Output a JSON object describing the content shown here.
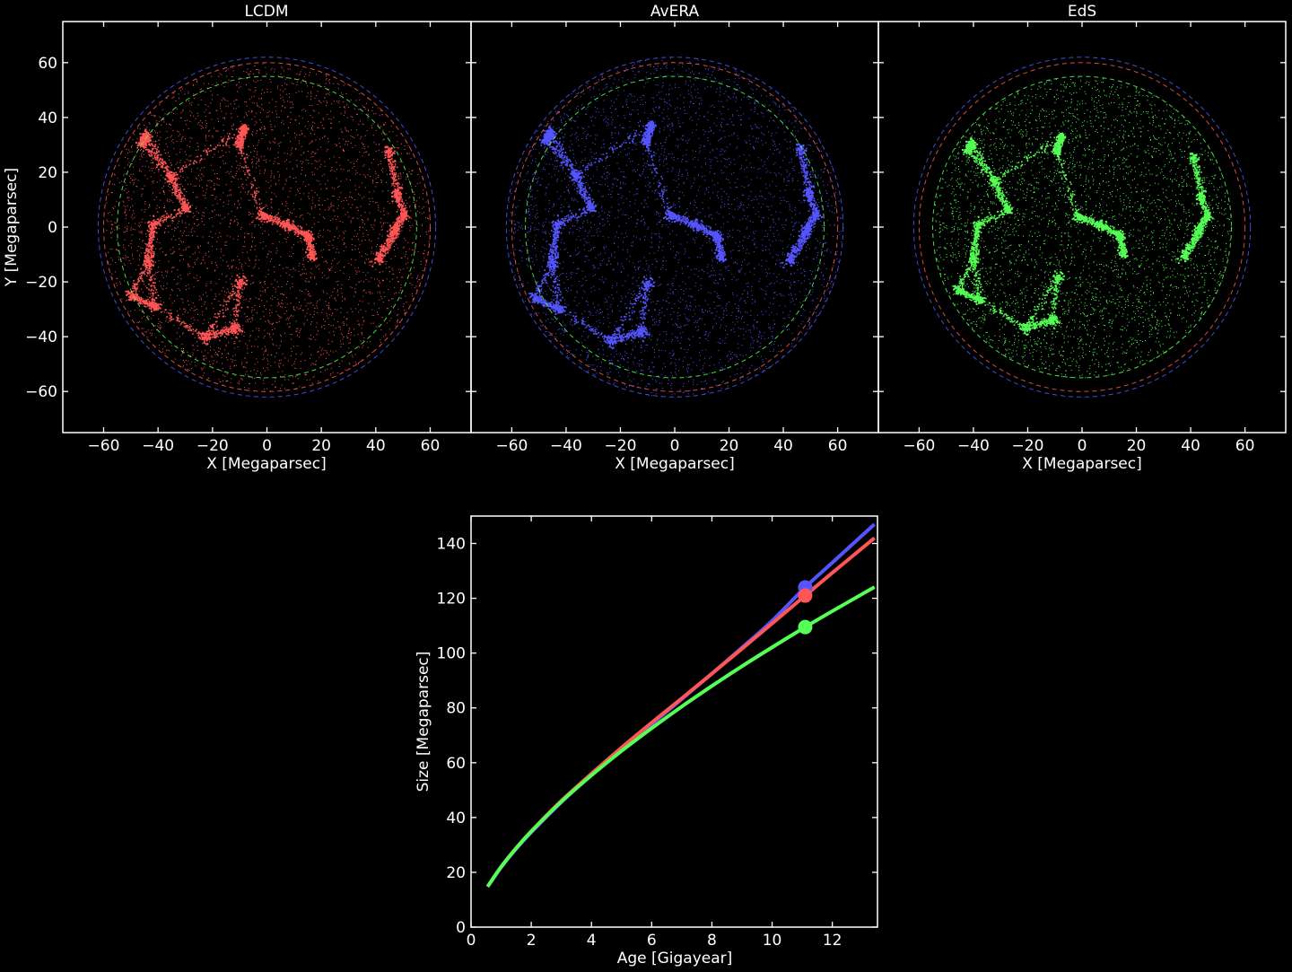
{
  "colors": {
    "lcdm": "#ff5555",
    "avera": "#5555ff",
    "eds": "#55ff55",
    "axes": "#ffffff",
    "background": "#000000"
  },
  "chart_data": [
    {
      "type": "scatter",
      "title": "LCDM",
      "xlabel": "X [Megaparsec]",
      "ylabel": "Y [Megaparsec]",
      "xlim": [
        -75,
        75
      ],
      "ylim": [
        -75,
        75
      ],
      "xticks": [
        "−60",
        "−40",
        "−20",
        "0",
        "20",
        "40",
        "60"
      ],
      "yticks": [
        "60",
        "40",
        "20",
        "0",
        "−20",
        "−40",
        "−60"
      ],
      "point_color": "#ff5555",
      "particle_radius": 60,
      "dashed_circles": [
        {
          "color": "#5555ff",
          "radius": 62
        },
        {
          "color": "#ff5555",
          "radius": 60
        },
        {
          "color": "#55ff55",
          "radius": 55
        }
      ]
    },
    {
      "type": "scatter",
      "title": "AvERA",
      "xlabel": "X [Megaparsec]",
      "xlim": [
        -75,
        75
      ],
      "ylim": [
        -75,
        75
      ],
      "xticks": [
        "−60",
        "−40",
        "−20",
        "0",
        "20",
        "40",
        "60"
      ],
      "point_color": "#5555ff",
      "particle_radius": 62,
      "dashed_circles": [
        {
          "color": "#5555ff",
          "radius": 62
        },
        {
          "color": "#ff5555",
          "radius": 60
        },
        {
          "color": "#55ff55",
          "radius": 55
        }
      ]
    },
    {
      "type": "scatter",
      "title": "EdS",
      "xlabel": "X [Megaparsec]",
      "xlim": [
        -75,
        75
      ],
      "ylim": [
        -75,
        75
      ],
      "xticks": [
        "−60",
        "−40",
        "−20",
        "0",
        "20",
        "40",
        "60"
      ],
      "point_color": "#55ff55",
      "particle_radius": 55,
      "dashed_circles": [
        {
          "color": "#5555ff",
          "radius": 62
        },
        {
          "color": "#ff5555",
          "radius": 60
        },
        {
          "color": "#55ff55",
          "radius": 55
        }
      ]
    },
    {
      "type": "line",
      "xlabel": "Age [Gigayear]",
      "ylabel": "Size [Megaparsec]",
      "xlim": [
        0,
        13.5
      ],
      "ylim": [
        0,
        150
      ],
      "xticks": [
        "0",
        "2",
        "4",
        "6",
        "8",
        "10",
        "12"
      ],
      "yticks": [
        "0",
        "20",
        "40",
        "60",
        "80",
        "100",
        "120",
        "140"
      ],
      "x": [
        0.55,
        1,
        1.5,
        2,
        3,
        4,
        5,
        6,
        7,
        8,
        9,
        10,
        11.1,
        12,
        13.4
      ],
      "series": [
        {
          "color": "#5555ff",
          "values": [
            14.7,
            21.8,
            28.6,
            34.6,
            45.6,
            55.5,
            64.9,
            74.1,
            83.2,
            92.5,
            102.0,
            111.8,
            124.0,
            133.0,
            147.0
          ]
        },
        {
          "color": "#ff5555",
          "values": [
            14.8,
            22.0,
            28.9,
            35.0,
            46.1,
            56.0,
            65.5,
            74.6,
            83.5,
            92.5,
            101.6,
            110.8,
            121.0,
            129.3,
            142.0
          ]
        },
        {
          "color": "#55ff55",
          "values": [
            14.8,
            22.0,
            28.8,
            34.9,
            45.8,
            55.4,
            64.3,
            72.6,
            80.5,
            88.0,
            95.2,
            102.1,
            109.5,
            115.3,
            124.1
          ]
        }
      ],
      "markers": [
        {
          "color": "#5555ff",
          "x": 11.1,
          "y": 124.0
        },
        {
          "color": "#ff5555",
          "x": 11.1,
          "y": 121.0
        },
        {
          "color": "#55ff55",
          "x": 11.1,
          "y": 109.5
        }
      ]
    }
  ]
}
